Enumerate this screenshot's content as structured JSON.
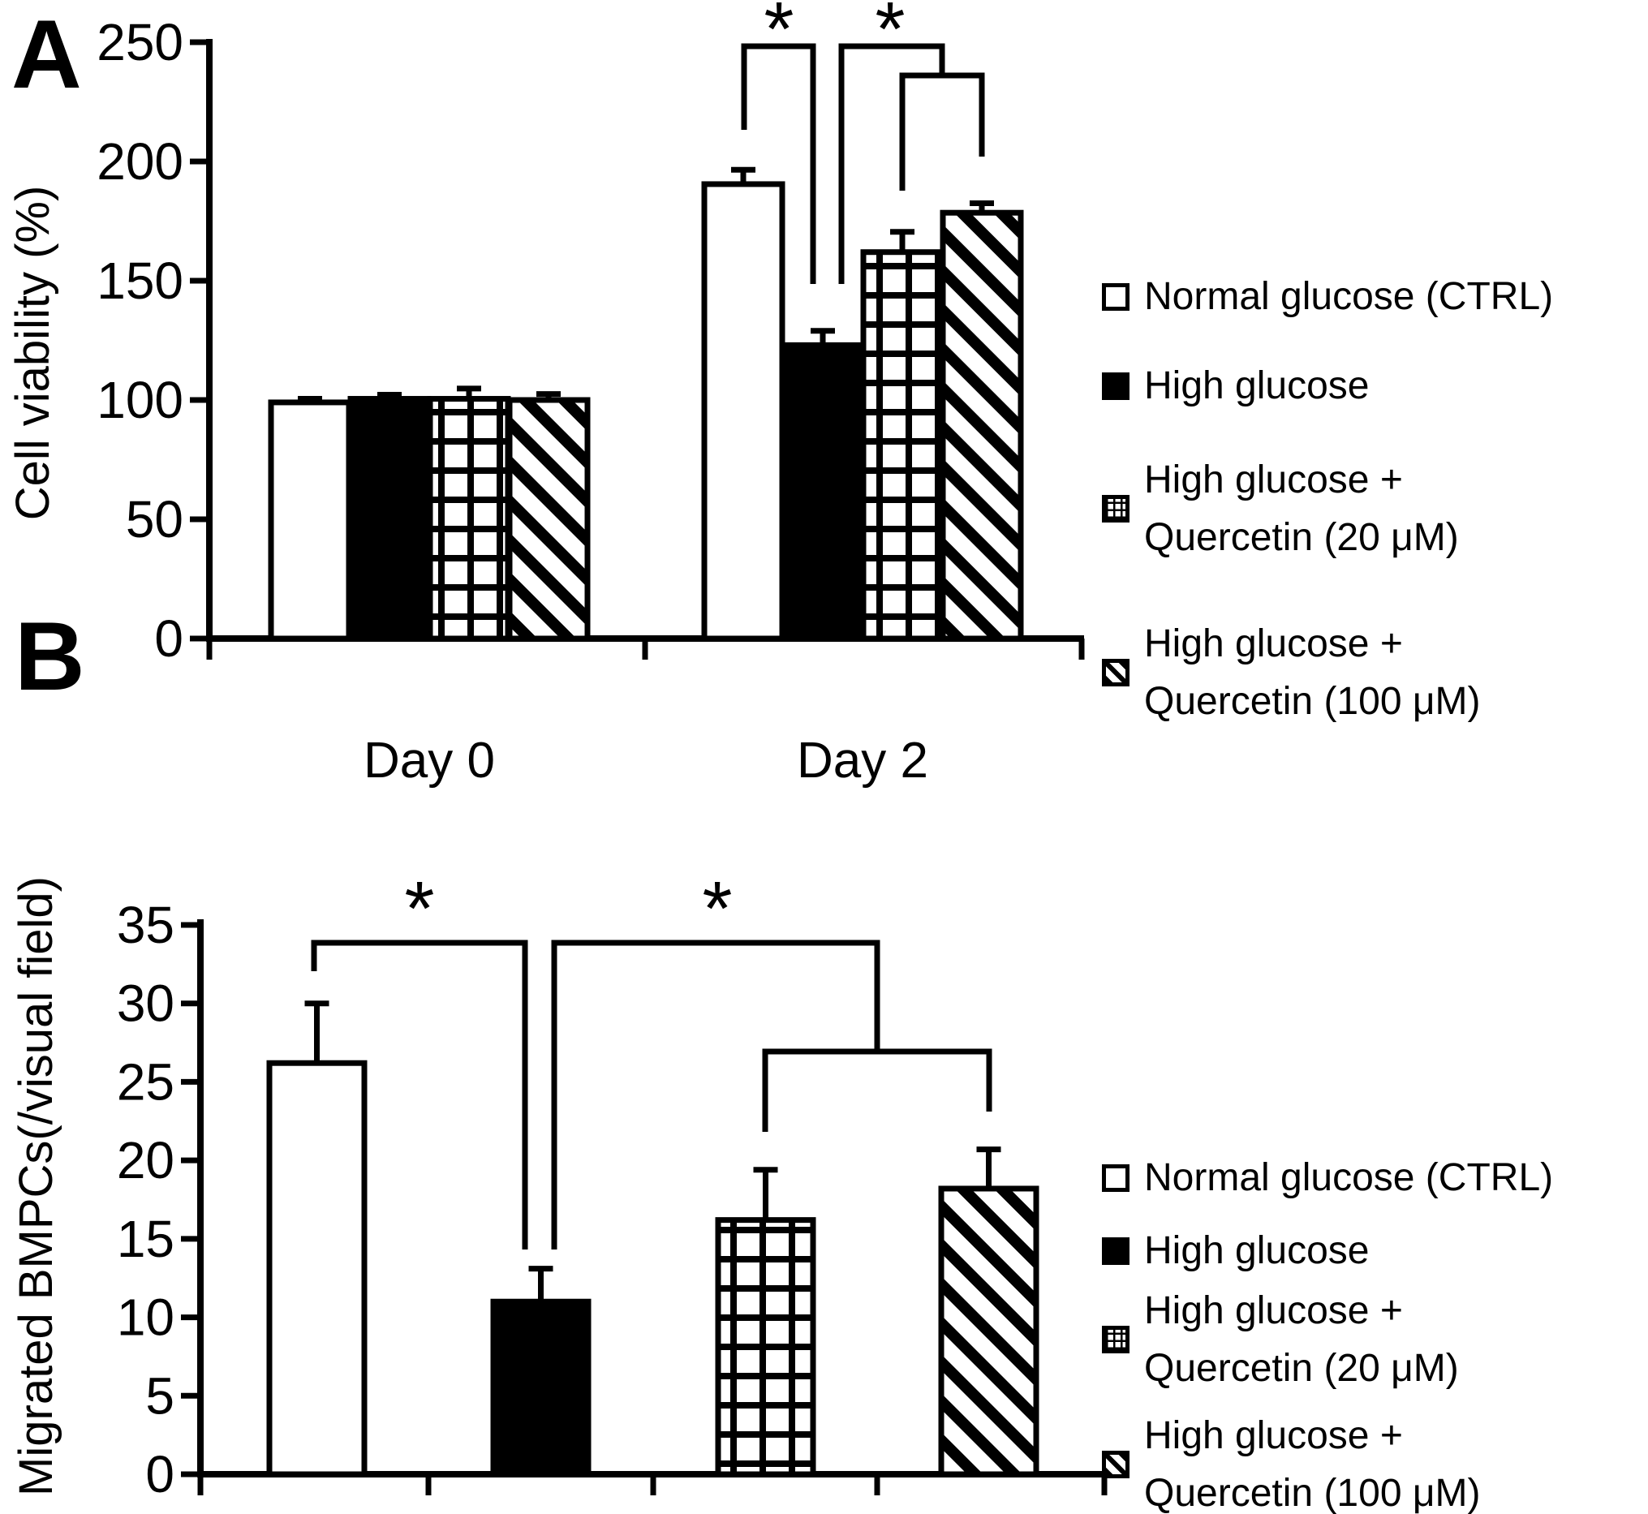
{
  "figure": {
    "background": "#ffffff",
    "ink": "#000000"
  },
  "panel_labels": [
    "A",
    "B"
  ],
  "legend": {
    "entries": [
      {
        "pattern": "white",
        "lines": [
          "Normal glucose (CTRL)"
        ]
      },
      {
        "pattern": "black",
        "lines": [
          "High glucose"
        ]
      },
      {
        "pattern": "grid",
        "lines": [
          "High glucose +",
          "Quercetin (20 μM)"
        ]
      },
      {
        "pattern": "diagonal",
        "lines": [
          "High glucose +",
          "Quercetin (100 μM)"
        ]
      }
    ]
  },
  "chart_data": [
    {
      "type": "bar",
      "panel": "A",
      "title": "",
      "xlabel": "",
      "ylabel": "Cell viability (%)",
      "ylim": [
        0,
        250
      ],
      "yticks": [
        0,
        50,
        100,
        150,
        200,
        250
      ],
      "categories": [
        "Day 0",
        "Day 2"
      ],
      "series": [
        {
          "name": "Normal glucose (CTRL)",
          "pattern": "white",
          "values": [
            99,
            190.5
          ],
          "errors": [
            1.5,
            6
          ]
        },
        {
          "name": "High glucose",
          "pattern": "black",
          "values": [
            100.5,
            123
          ],
          "errors": [
            1.7,
            6
          ]
        },
        {
          "name": "High glucose + Quercetin (20 μM)",
          "pattern": "grid",
          "values": [
            100.5,
            162
          ],
          "errors": [
            4.3,
            8.5
          ]
        },
        {
          "name": "High glucose + Quercetin (100 μM)",
          "pattern": "diagonal",
          "values": [
            100,
            178.5
          ],
          "errors": [
            2.5,
            4
          ]
        }
      ],
      "significance": [
        {
          "label": "*",
          "compares": [
            "Normal glucose (CTRL) @ Day 2",
            "High glucose @ Day 2"
          ]
        },
        {
          "label": "*",
          "compares": [
            "High glucose @ Day 2",
            "High glucose + Quercetin (20 and 100 μM) @ Day 2"
          ]
        }
      ],
      "legend_position": "right",
      "grid": false
    },
    {
      "type": "bar",
      "panel": "B",
      "title": "",
      "xlabel": "",
      "ylabel": "Migrated BMPCs(/visual field)",
      "ylim": [
        0,
        35
      ],
      "yticks": [
        0,
        5,
        10,
        15,
        20,
        25,
        30,
        35
      ],
      "categories": [
        "Normal glucose (CTRL)",
        "High glucose",
        "High glucose + Quercetin (20 μM)",
        "High glucose + Quercetin (100 μM)"
      ],
      "values": [
        26.2,
        11,
        16.2,
        18.2
      ],
      "errors": [
        3.8,
        2.1,
        3.2,
        2.5
      ],
      "significance": [
        {
          "label": "*",
          "compares": [
            "Normal glucose (CTRL)",
            "High glucose"
          ]
        },
        {
          "label": "*",
          "compares": [
            "High glucose",
            "High glucose + Quercetin (20 and 100 μM)"
          ]
        }
      ],
      "legend_position": "right",
      "grid": false
    }
  ]
}
